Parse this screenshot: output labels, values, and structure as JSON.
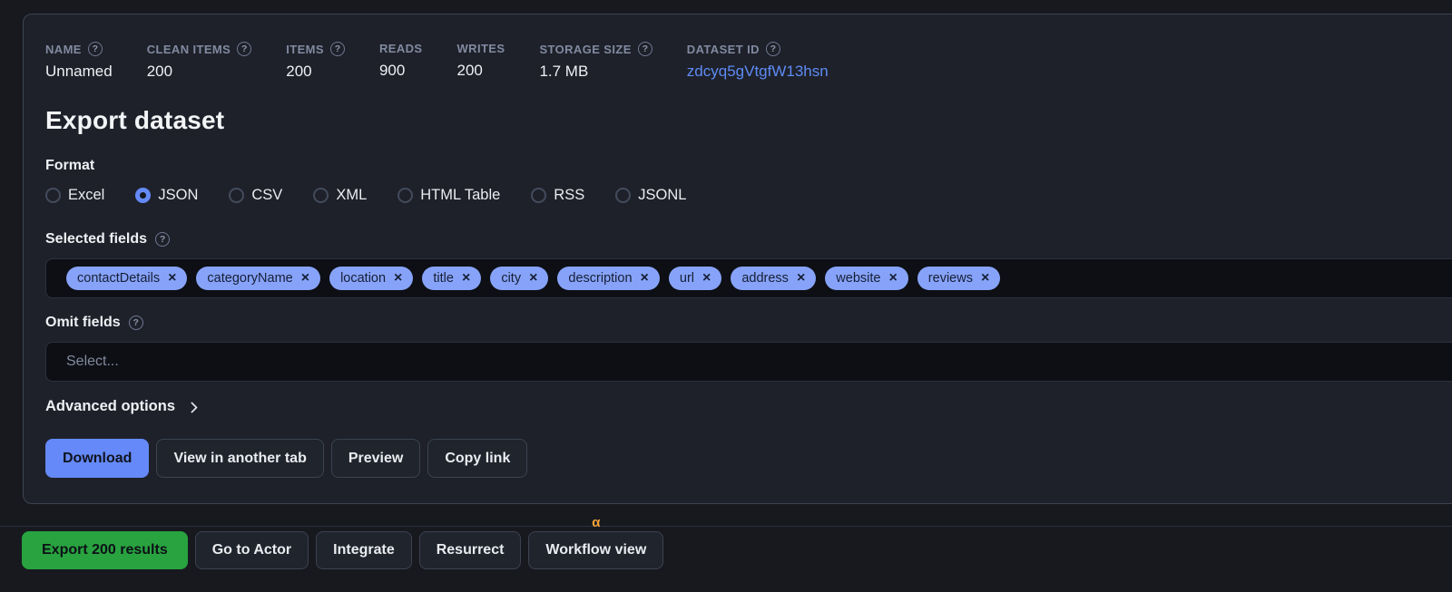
{
  "icons": {
    "help": "?",
    "close": "×",
    "workflow_badge": "α"
  },
  "stats": [
    {
      "label": "NAME",
      "value": "Unnamed",
      "help": true,
      "link": false
    },
    {
      "label": "CLEAN ITEMS",
      "value": "200",
      "help": true,
      "link": false
    },
    {
      "label": "ITEMS",
      "value": "200",
      "help": true,
      "link": false
    },
    {
      "label": "READS",
      "value": "900",
      "help": false,
      "link": false
    },
    {
      "label": "WRITES",
      "value": "200",
      "help": false,
      "link": false
    },
    {
      "label": "STORAGE SIZE",
      "value": "1.7 MB",
      "help": true,
      "link": false
    },
    {
      "label": "DATASET ID",
      "value": "zdcyq5gVtgfW13hsn",
      "help": true,
      "link": true
    }
  ],
  "export_panel": {
    "title": "Export dataset",
    "format": {
      "label": "Format",
      "options": [
        "Excel",
        "JSON",
        "CSV",
        "XML",
        "HTML Table",
        "RSS",
        "JSONL"
      ],
      "selected": "JSON"
    },
    "selected_fields": {
      "label": "Selected fields",
      "tags": [
        "contactDetails",
        "categoryName",
        "location",
        "title",
        "city",
        "description",
        "url",
        "address",
        "website",
        "reviews"
      ]
    },
    "omit_fields": {
      "label": "Omit fields",
      "placeholder": "Select..."
    },
    "advanced_options": {
      "label": "Advanced options"
    },
    "actions": {
      "download": "Download",
      "view_in_another_tab": "View in another tab",
      "preview": "Preview",
      "copy_link": "Copy link"
    }
  },
  "footer": {
    "export_results": "Export 200 results",
    "go_to_actor": "Go to Actor",
    "integrate": "Integrate",
    "resurrect": "Resurrect",
    "workflow_view": "Workflow view"
  },
  "colors": {
    "accent_blue": "#6589f8",
    "tag_blue": "#87a3f9",
    "link_blue": "#5d8bf4",
    "success_green": "#28a33f",
    "alpha_orange": "#f3a337"
  }
}
